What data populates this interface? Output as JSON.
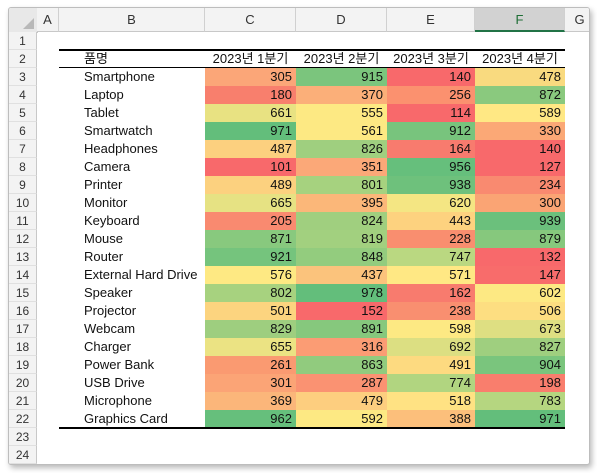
{
  "columns": [
    "A",
    "B",
    "C",
    "D",
    "E",
    "F",
    "G"
  ],
  "rows": [
    "1",
    "2",
    "3",
    "4",
    "5",
    "6",
    "7",
    "8",
    "9",
    "10",
    "11",
    "12",
    "13",
    "14",
    "15",
    "16",
    "17",
    "18",
    "19",
    "20",
    "21",
    "22",
    "23",
    "24"
  ],
  "table": {
    "headers": [
      "품명",
      "2023년 1분기",
      "2023년 2분기",
      "2023년 3분기",
      "2023년 4분기"
    ],
    "items": [
      {
        "name": "Smartphone",
        "q": [
          305,
          915,
          140,
          478
        ],
        "colors": [
          "#fba678",
          "#7bc57d",
          "#f8696b",
          "#f9da7f"
        ]
      },
      {
        "name": "Laptop",
        "q": [
          180,
          370,
          256,
          872
        ],
        "colors": [
          "#f87f6d",
          "#fbaf79",
          "#fb916f",
          "#8ac97e"
        ]
      },
      {
        "name": "Tablet",
        "q": [
          661,
          555,
          114,
          589
        ],
        "colors": [
          "#e8e282",
          "#fde983",
          "#f8696b",
          "#ffe884"
        ]
      },
      {
        "name": "Smartwatch",
        "q": [
          971,
          561,
          912,
          330
        ],
        "colors": [
          "#63be7b",
          "#fde983",
          "#78c47d",
          "#fba876"
        ]
      },
      {
        "name": "Headphones",
        "q": [
          487,
          826,
          164,
          140
        ],
        "colors": [
          "#fcd07f",
          "#9fcf7f",
          "#f87b6e",
          "#f8696b"
        ]
      },
      {
        "name": "Camera",
        "q": [
          101,
          351,
          956,
          127
        ],
        "colors": [
          "#f8696b",
          "#fba878",
          "#66bf7c",
          "#f8696b"
        ]
      },
      {
        "name": "Printer",
        "q": [
          489,
          801,
          938,
          234
        ],
        "colors": [
          "#fcd17f",
          "#a6d27f",
          "#6ec17c",
          "#f98a70"
        ]
      },
      {
        "name": "Monitor",
        "q": [
          665,
          395,
          620,
          300
        ],
        "colors": [
          "#e6e283",
          "#fbb779",
          "#f4e683",
          "#faa474"
        ]
      },
      {
        "name": "Keyboard",
        "q": [
          205,
          824,
          443,
          939
        ],
        "colors": [
          "#f98a70",
          "#a0cf7f",
          "#fdd27f",
          "#6bc07c"
        ]
      },
      {
        "name": "Mouse",
        "q": [
          871,
          819,
          228,
          879
        ],
        "colors": [
          "#88c97e",
          "#a2d07f",
          "#f98e6f",
          "#86c87d"
        ]
      },
      {
        "name": "Router",
        "q": [
          921,
          848,
          747,
          132
        ],
        "colors": [
          "#75c47d",
          "#93cc7e",
          "#bad881",
          "#f8696b"
        ]
      },
      {
        "name": "External Hard Drive",
        "q": [
          576,
          437,
          571,
          147
        ],
        "colors": [
          "#fee983",
          "#fbc37c",
          "#ffe884",
          "#f86c6b"
        ]
      },
      {
        "name": "Speaker",
        "q": [
          802,
          978,
          162,
          602
        ],
        "colors": [
          "#a7d27f",
          "#63be7b",
          "#f87b6e",
          "#fde983"
        ]
      },
      {
        "name": "Projector",
        "q": [
          501,
          152,
          238,
          506
        ],
        "colors": [
          "#fcd47f",
          "#f8696b",
          "#f98f70",
          "#fdde81"
        ]
      },
      {
        "name": "Webcam",
        "q": [
          829,
          891,
          598,
          673
        ],
        "colors": [
          "#9ece7f",
          "#86c87d",
          "#fde983",
          "#dedf82"
        ]
      },
      {
        "name": "Charger",
        "q": [
          655,
          316,
          692,
          827
        ],
        "colors": [
          "#ebe383",
          "#fb9c74",
          "#dcdf82",
          "#9fcf7f"
        ]
      },
      {
        "name": "Power Bank",
        "q": [
          261,
          863,
          491,
          904
        ],
        "colors": [
          "#fa9a71",
          "#91cb7e",
          "#fdda80",
          "#7ac57d"
        ]
      },
      {
        "name": "USB Drive",
        "q": [
          301,
          287,
          774,
          198
        ],
        "colors": [
          "#fba476",
          "#fa9272",
          "#b1d580",
          "#f97e6d"
        ]
      },
      {
        "name": "Microphone",
        "q": [
          369,
          479,
          518,
          783
        ],
        "colors": [
          "#fbb67a",
          "#fdce7f",
          "#ffe283",
          "#b5d680"
        ]
      },
      {
        "name": "Graphics Card",
        "q": [
          962,
          592,
          388,
          971
        ],
        "colors": [
          "#66bf7c",
          "#fde983",
          "#fcbf7b",
          "#63be7b"
        ]
      }
    ]
  }
}
